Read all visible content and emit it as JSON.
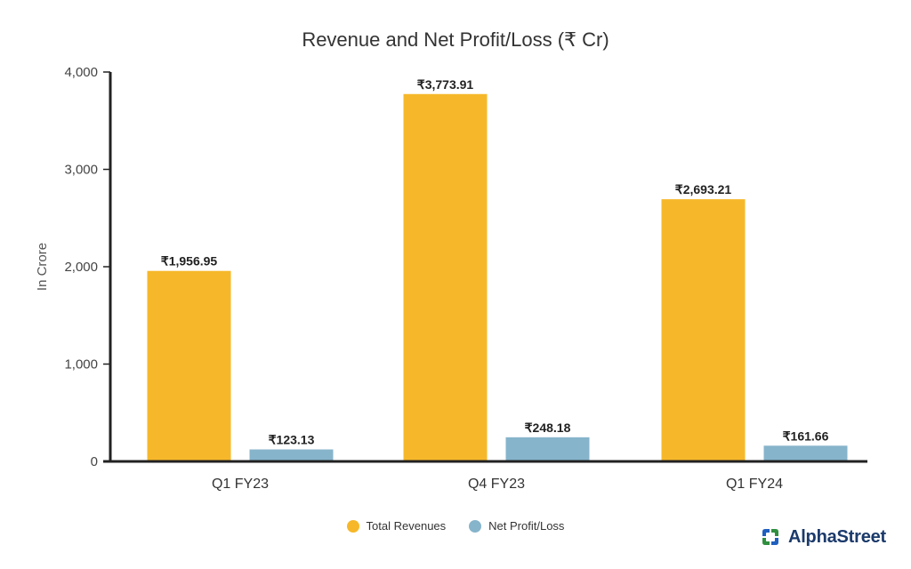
{
  "colors": {
    "revenue": "#f6b82a",
    "profit": "#86b4cb",
    "axis": "#222222"
  },
  "chart_data": {
    "type": "bar",
    "title": "Revenue and Net Profit/Loss (₹ Cr)",
    "ylabel": "In Crore",
    "xlabel": "",
    "ylim": [
      0,
      4000
    ],
    "yticks": [
      0,
      1000,
      2000,
      3000,
      4000
    ],
    "ytick_labels": [
      "0",
      "1,000",
      "2,000",
      "3,000",
      "4,000"
    ],
    "categories": [
      "Q1 FY23",
      "Q4 FY23",
      "Q1 FY24"
    ],
    "series": [
      {
        "name": "Total Revenues",
        "values": [
          1956.95,
          3773.91,
          2693.21
        ],
        "labels": [
          "₹1,956.95",
          "₹3,773.91",
          "₹2,693.21"
        ]
      },
      {
        "name": "Net Profit/Loss",
        "values": [
          123.13,
          248.18,
          161.66
        ],
        "labels": [
          "₹123.13",
          "₹248.18",
          "₹161.66"
        ]
      }
    ],
    "legend_position": "bottom-center",
    "grid": false
  },
  "legend": {
    "revenue": "Total Revenues",
    "profit": "Net Profit/Loss"
  },
  "brand": {
    "name": "AlphaStreet",
    "icon": "alphastreet-logo-icon"
  }
}
